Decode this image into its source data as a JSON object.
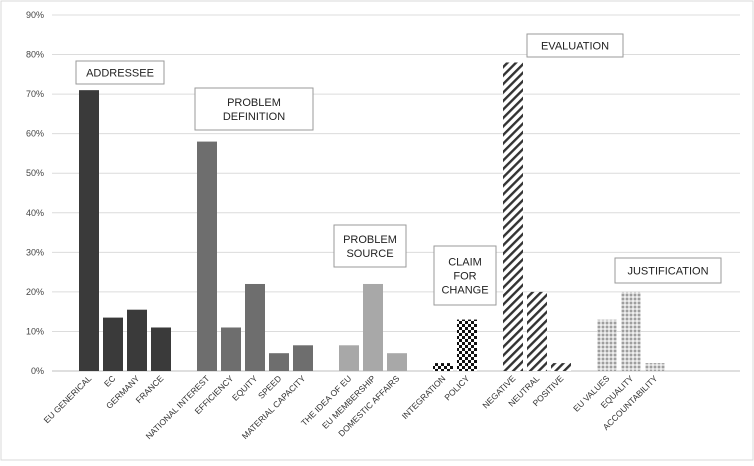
{
  "chart_data": {
    "type": "bar",
    "y_ticks": [
      "0%",
      "10%",
      "20%",
      "30%",
      "40%",
      "50%",
      "60%",
      "70%",
      "80%",
      "90%"
    ],
    "ylim": [
      0,
      90
    ],
    "grid": true,
    "groups": [
      {
        "label_lines": [
          "ADDRESSEE"
        ],
        "fill": "solid",
        "color": "#3a3a3a",
        "bars": [
          {
            "category": "EU GENERICAL",
            "value": 71
          },
          {
            "category": "EC",
            "value": 13.5
          },
          {
            "category": "GERMANY",
            "value": 15.5
          },
          {
            "category": "FRANCE",
            "value": 11
          }
        ]
      },
      {
        "label_lines": [
          "PROBLEM",
          "DEFINITION"
        ],
        "fill": "solid",
        "color": "#6e6e6e",
        "bars": [
          {
            "category": "NATIONAL INTEREST",
            "value": 58
          },
          {
            "category": "EFFICIENCY",
            "value": 11
          },
          {
            "category": "EQUITY",
            "value": 22
          },
          {
            "category": "SPEED",
            "value": 4.5
          },
          {
            "category": "MATERIAL CAPACITY",
            "value": 6.5
          }
        ]
      },
      {
        "label_lines": [
          "PROBLEM",
          "SOURCE"
        ],
        "fill": "solid",
        "color": "#a8a8a8",
        "bars": [
          {
            "category": "THE IDEA OF EU",
            "value": 6.5
          },
          {
            "category": "EU MEMBERSHIP",
            "value": 22
          },
          {
            "category": "DOMESTIC AFFAIRS",
            "value": 4.5
          }
        ]
      },
      {
        "label_lines": [
          "CLAIM",
          "FOR",
          "CHANGE"
        ],
        "fill": "checker",
        "color": "#111111",
        "bars": [
          {
            "category": "INTEGRATION",
            "value": 2
          },
          {
            "category": "POLICY",
            "value": 13
          }
        ]
      },
      {
        "label_lines": [
          "EVALUATION"
        ],
        "fill": "diagonal",
        "color": "#333333",
        "bars": [
          {
            "category": "NEGATIVE",
            "value": 78
          },
          {
            "category": "NEUTRAL",
            "value": 20
          },
          {
            "category": "POSITIVE",
            "value": 2
          }
        ]
      },
      {
        "label_lines": [
          "JUSTIFICATION"
        ],
        "fill": "dots",
        "color": "#666666",
        "bars": [
          {
            "category": "EU VALUES",
            "value": 13
          },
          {
            "category": "EQUALITY",
            "value": 20
          },
          {
            "category": "ACCOUNTABILITY",
            "value": 2
          }
        ]
      }
    ]
  }
}
